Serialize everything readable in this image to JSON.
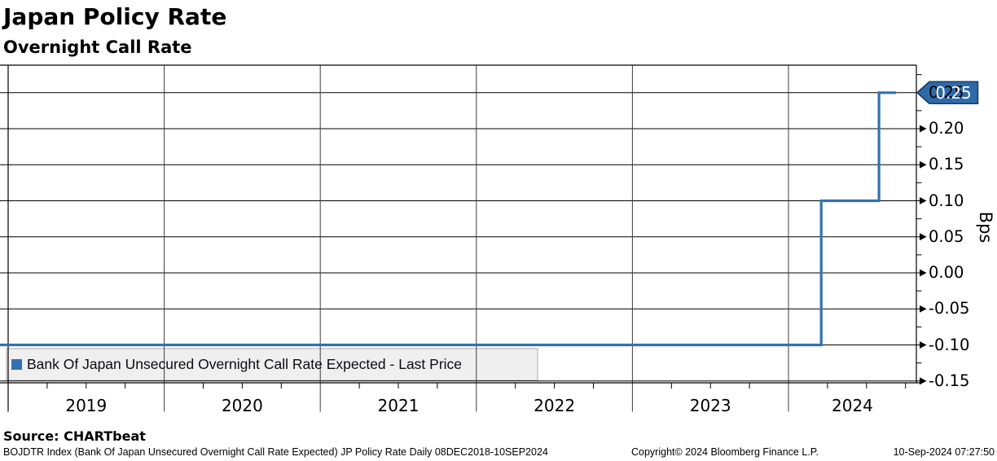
{
  "header": {
    "title": "Japan Policy Rate",
    "subtitle": "Overnight Call Rate"
  },
  "legend": {
    "label": "Bank Of Japan Unsecured Overnight Call Rate Expected - Last Price",
    "swatch_color": "#3470B2",
    "box_fill": "#EFEFEF",
    "box_border": "#ADADAD"
  },
  "last_price_tag": {
    "label": "0.25",
    "fill": "#2E6AA8",
    "border": "#173F66",
    "text_color": "#FFFFFF"
  },
  "source_line": "Source: CHARTbeat",
  "footer": {
    "left": "BOJDTR Index (Bank Of Japan Unsecured Overnight Call Rate Expected) JP Policy Rate  Daily 08DEC2018-10SEP2024",
    "center": "Copyright© 2024 Bloomberg Finance L.P.",
    "right": "10-Sep-2024 07:27:50"
  },
  "chart_data": {
    "type": "line",
    "line_style": "step-after",
    "title": "Japan Policy Rate",
    "subtitle": "Overnight Call Rate",
    "ylabel": "Bps",
    "grid": true,
    "legend_position": "bottom-left",
    "y_ticks": [
      0.25,
      0.2,
      0.15,
      0.1,
      0.05,
      0.0,
      -0.05,
      -0.1,
      -0.15
    ],
    "y_minor_step": 0.025,
    "ylim": [
      -0.1525,
      0.288
    ],
    "x_year_ticks": [
      2019,
      2020,
      2021,
      2022,
      2023,
      2024
    ],
    "xlim_year": [
      2018.948,
      2024.819
    ],
    "x_range_label": "08DEC2018-10SEP2024",
    "last_price": 0.25,
    "series": [
      {
        "name": "Bank Of Japan Unsecured Overnight Call Rate Expected - Last Price",
        "color": "#3470B2",
        "points": [
          {
            "date": "08DEC2018",
            "year_frac": 2018.94,
            "value": -0.1
          },
          {
            "date": "19MAR2024",
            "year_frac": 2024.21,
            "value": 0.1
          },
          {
            "date": "31JUL2024",
            "year_frac": 2024.58,
            "value": 0.25
          },
          {
            "date": "10SEP2024",
            "year_frac": 2024.69,
            "value": 0.25
          }
        ]
      }
    ]
  }
}
